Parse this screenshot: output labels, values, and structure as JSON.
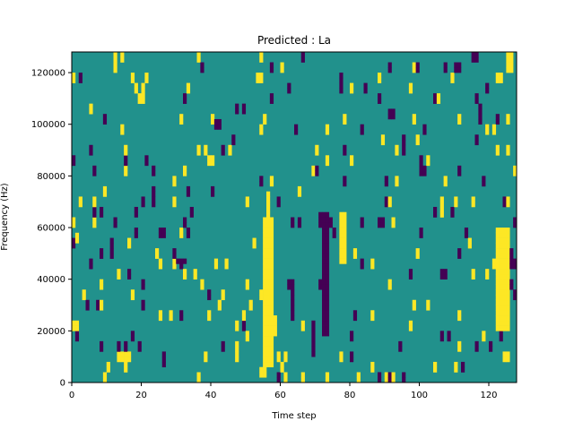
{
  "chart_data": {
    "type": "heatmap",
    "title": "Predicted : La",
    "xlabel": "Time step",
    "ylabel": "Frequency (Hz)",
    "xlim": [
      0,
      128
    ],
    "ylim": [
      0,
      128000
    ],
    "x_ticks": [
      0,
      20,
      40,
      60,
      80,
      100,
      120
    ],
    "y_ticks": [
      0,
      20000,
      40000,
      60000,
      80000,
      100000,
      120000
    ],
    "x_tick_labels": [
      "0",
      "20",
      "40",
      "60",
      "80",
      "100",
      "120"
    ],
    "y_tick_labels": [
      "0",
      "20000",
      "40000",
      "60000",
      "80000",
      "100000",
      "120000"
    ],
    "time_steps": 128,
    "freq_bins": 64,
    "freq_bin_hz": 2000,
    "colors": {
      "background": "#21918c",
      "high": "#fde725",
      "low": "#440154"
    },
    "values_legend": {
      "0": "low",
      "1": "background",
      "2": "high"
    },
    "blocks": [
      [
        55,
        58,
        6000,
        64000,
        2
      ],
      [
        54,
        56,
        2000,
        6000,
        2
      ],
      [
        56,
        57,
        64000,
        74000,
        2
      ],
      [
        58,
        59,
        18000,
        26000,
        2
      ],
      [
        72,
        74,
        18000,
        66000,
        0
      ],
      [
        71,
        72,
        60000,
        66000,
        0
      ],
      [
        69,
        70,
        10000,
        24000,
        0
      ],
      [
        63,
        64,
        24000,
        40000,
        0
      ],
      [
        77,
        79,
        46000,
        66000,
        2
      ],
      [
        122,
        126,
        20000,
        60000,
        2
      ],
      [
        125,
        127,
        120000,
        128000,
        2
      ],
      [
        124,
        126,
        8000,
        12000,
        2
      ],
      [
        41,
        43,
        98000,
        102000,
        0
      ],
      [
        88,
        90,
        60000,
        64000,
        0
      ],
      [
        13,
        17,
        8000,
        12000,
        2
      ],
      [
        30,
        33,
        46000,
        48000,
        0
      ],
      [
        26,
        27,
        6000,
        12000,
        0
      ],
      [
        91,
        93,
        102000,
        106000,
        0
      ],
      [
        0,
        2,
        20000,
        24000,
        2
      ],
      [
        1,
        2,
        54000,
        58000,
        2
      ]
    ],
    "background_noise": {
      "seed": 7,
      "high_density": 0.035,
      "low_density": 0.03
    }
  }
}
